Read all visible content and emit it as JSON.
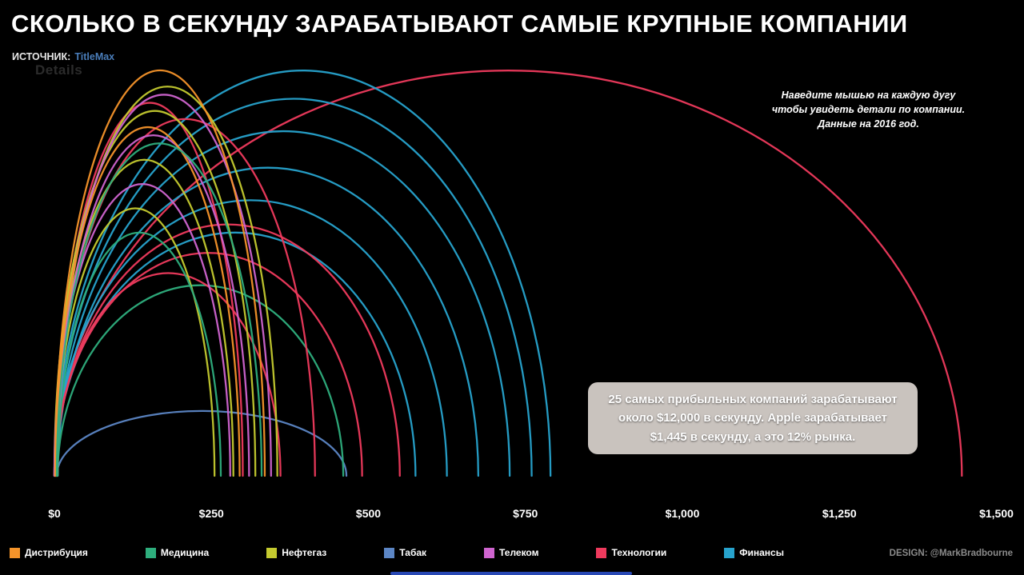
{
  "header": {
    "title": "СКОЛЬКО В СЕКУНДУ ЗАРАБАТЫВАЮТ САМЫЕ КРУПНЫЕ КОМПАНИИ",
    "source_label": "ИСТОЧНИК:",
    "source_name": "TitleMax",
    "ghost_text": "Details"
  },
  "hover_note": "Наведите мышью на каждую дугу\nчтобы увидеть детали по компании.\nДанные на 2016 год.",
  "tooltip": {
    "text": "25 самых прибыльных компаний зарабатывают около $12,000 в секунду. Apple зарабатывает $1,445 в секунду, а это 12% рынка."
  },
  "credit": "DESIGN: @MarkBradbourne",
  "colors": {
    "background": "#000000",
    "source_name": "#4a7ebb",
    "tooltip_bg": "#c9c3be"
  },
  "chart_data": {
    "type": "arc",
    "title": "Сколько в секунду зарабатывают самые крупные компании",
    "unit": "$ в секунду",
    "year": "2016",
    "x_axis": {
      "min": 0,
      "max": 1500,
      "ticks": [
        {
          "label": "$0",
          "value": 0
        },
        {
          "label": "$250",
          "value": 250
        },
        {
          "label": "$500",
          "value": 500
        },
        {
          "label": "$750",
          "value": 750
        },
        {
          "label": "$1,000",
          "value": 1000
        },
        {
          "label": "$1,250",
          "value": 1250
        },
        {
          "label": "$1,500",
          "value": 1500
        }
      ]
    },
    "categories": [
      {
        "name": "Дистрибуция",
        "color": "#f5942a"
      },
      {
        "name": "Медицина",
        "color": "#2eae7d"
      },
      {
        "name": "Нефтегаз",
        "color": "#c4ca2f"
      },
      {
        "name": "Табак",
        "color": "#5c86c5"
      },
      {
        "name": "Телеком",
        "color": "#cf64cf"
      },
      {
        "name": "Технологии",
        "color": "#ef3a5d"
      },
      {
        "name": "Финансы",
        "color": "#27a3cd"
      }
    ],
    "highlight": {
      "company": "Apple",
      "value_per_second": 1445,
      "market_share_pct": 12,
      "top25_total_per_second": 12000
    },
    "arcs": [
      {
        "category": "Технологии",
        "value": 1445,
        "height_fraction": 1.0
      },
      {
        "category": "Финансы",
        "value": 790,
        "height_fraction": 1.0
      },
      {
        "category": "Финансы",
        "value": 760,
        "height_fraction": 0.93
      },
      {
        "category": "Финансы",
        "value": 725,
        "height_fraction": 0.85
      },
      {
        "category": "Финансы",
        "value": 675,
        "height_fraction": 0.76
      },
      {
        "category": "Финансы",
        "value": 625,
        "height_fraction": 0.68
      },
      {
        "category": "Финансы",
        "value": 575,
        "height_fraction": 0.6
      },
      {
        "category": "Технологии",
        "value": 550,
        "height_fraction": 0.62
      },
      {
        "category": "Табак",
        "value": 465,
        "height_fraction": 0.16
      },
      {
        "category": "Медицина",
        "value": 460,
        "height_fraction": 0.47
      },
      {
        "category": "Технологии",
        "value": 490,
        "height_fraction": 0.55
      },
      {
        "category": "Технологии",
        "value": 415,
        "height_fraction": 0.88
      },
      {
        "category": "Технологии",
        "value": 360,
        "height_fraction": 0.5
      },
      {
        "category": "Технологии",
        "value": 300,
        "height_fraction": 0.92
      },
      {
        "category": "Нефтегаз",
        "value": 355,
        "height_fraction": 0.96
      },
      {
        "category": "Нефтегаз",
        "value": 320,
        "height_fraction": 0.9
      },
      {
        "category": "Нефтегаз",
        "value": 285,
        "height_fraction": 0.78
      },
      {
        "category": "Нефтегаз",
        "value": 255,
        "height_fraction": 0.66
      },
      {
        "category": "Телеком",
        "value": 345,
        "height_fraction": 0.94
      },
      {
        "category": "Телеком",
        "value": 310,
        "height_fraction": 0.84
      },
      {
        "category": "Телеком",
        "value": 280,
        "height_fraction": 0.72
      },
      {
        "category": "Дистрибуция",
        "value": 335,
        "height_fraction": 1.0
      },
      {
        "category": "Дистрибуция",
        "value": 295,
        "height_fraction": 0.86
      },
      {
        "category": "Медицина",
        "value": 330,
        "height_fraction": 0.82
      },
      {
        "category": "Медицина",
        "value": 265,
        "height_fraction": 0.6
      }
    ]
  }
}
